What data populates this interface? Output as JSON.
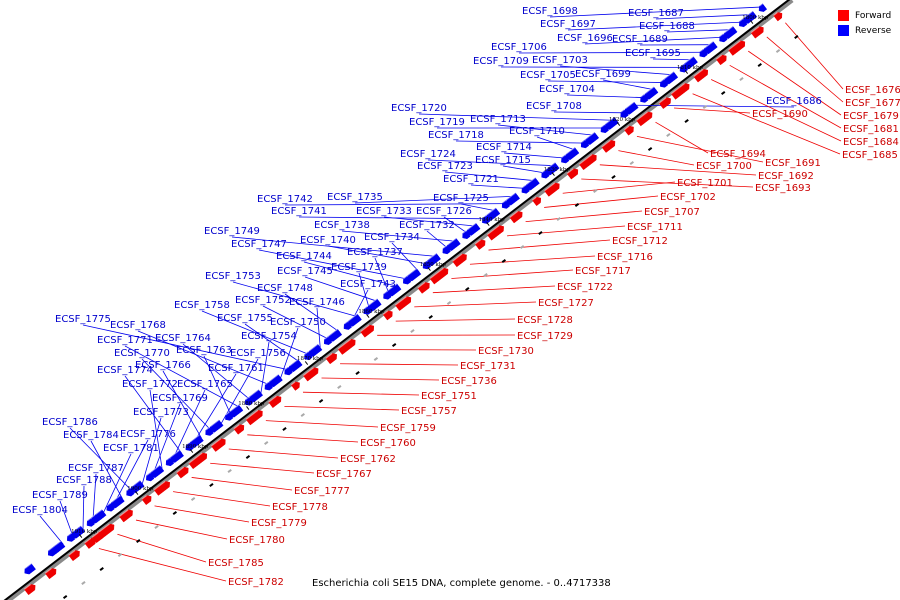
{
  "caption": "Escherichia coli SE15 DNA, complete genome. - 0..4717338",
  "legend": [
    {
      "label": "Forward",
      "color": "#ff0000"
    },
    {
      "label": "Reverse",
      "color": "#0000ff"
    }
  ],
  "colors": {
    "forward": "#ee0000",
    "reverse": "#0000ee",
    "forward_label": "#cc0000",
    "reverse_label": "#0000cc",
    "axis": "#000000"
  },
  "ticks": [
    "1800 kbp",
    "1810 kbp",
    "1820 kbp",
    "1830 kbp",
    "1840 kbp",
    "1850 kbp",
    "1860 kbp",
    "1870 kbp",
    "1880 kbp",
    "1890 kbp",
    "1900 kbp",
    "1910 kbp"
  ],
  "reverse_genes": [
    "ECSF_1698",
    "ECSF_1687",
    "ECSF_1697",
    "ECSF_1688",
    "ECSF_1696",
    "ECSF_1689",
    "ECSF_1706",
    "ECSF_1695",
    "ECSF_1709",
    "ECSF_1703",
    "ECSF_1705",
    "ECSF_1699",
    "ECSF_1704",
    "ECSF_1686",
    "ECSF_1708",
    "ECSF_1720",
    "ECSF_1719",
    "ECSF_1713",
    "ECSF_1718",
    "ECSF_1710",
    "ECSF_1714",
    "ECSF_1724",
    "ECSF_1715",
    "ECSF_1723",
    "ECSF_1721",
    "ECSF_1735",
    "ECSF_1742",
    "ECSF_1725",
    "ECSF_1741",
    "ECSF_1733",
    "ECSF_1726",
    "ECSF_1738",
    "ECSF_1732",
    "ECSF_1749",
    "ECSF_1740",
    "ECSF_1734",
    "ECSF_1747",
    "ECSF_1744",
    "ECSF_1737",
    "ECSF_1745",
    "ECSF_1739",
    "ECSF_1753",
    "ECSF_1743",
    "ECSF_1748",
    "ECSF_1752",
    "ECSF_1746",
    "ECSF_1758",
    "ECSF_1755",
    "ECSF_1775",
    "ECSF_1750",
    "ECSF_1768",
    "ECSF_1754",
    "ECSF_1764",
    "ECSF_1771",
    "ECSF_1763",
    "ECSF_1756",
    "ECSF_1770",
    "ECSF_1766",
    "ECSF_1761",
    "ECSF_1774",
    "ECSF_1765",
    "ECSF_1772",
    "ECSF_1769",
    "ECSF_1773",
    "ECSF_1786",
    "ECSF_1784",
    "ECSF_1776",
    "ECSF_1781",
    "ECSF_1787",
    "ECSF_1788",
    "ECSF_1789",
    "ECSF_1804"
  ],
  "forward_genes": [
    "ECSF_1676",
    "ECSF_1677",
    "ECSF_1679",
    "ECSF_1681",
    "ECSF_1684",
    "ECSF_1685",
    "ECSF_1690",
    "ECSF_1694",
    "ECSF_1691",
    "ECSF_1700",
    "ECSF_1692",
    "ECSF_1693",
    "ECSF_1701",
    "ECSF_1702",
    "ECSF_1707",
    "ECSF_1711",
    "ECSF_1712",
    "ECSF_1716",
    "ECSF_1717",
    "ECSF_1722",
    "ECSF_1727",
    "ECSF_1728",
    "ECSF_1729",
    "ECSF_1730",
    "ECSF_1731",
    "ECSF_1736",
    "ECSF_1751",
    "ECSF_1757",
    "ECSF_1759",
    "ECSF_1760",
    "ECSF_1762",
    "ECSF_1767",
    "ECSF_1777",
    "ECSF_1778",
    "ECSF_1779",
    "ECSF_1780",
    "ECSF_1785",
    "ECSF_1782"
  ]
}
